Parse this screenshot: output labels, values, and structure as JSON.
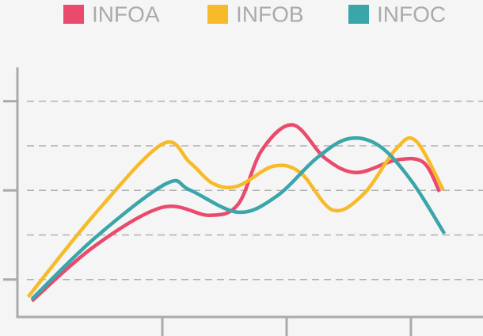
{
  "chart_data": {
    "type": "line",
    "xlim": [
      -0.166,
      3.58
    ],
    "xticks": [
      1,
      2,
      3
    ],
    "ylim": [
      0.16,
      5.76
    ],
    "yticks": [
      1,
      2,
      3,
      4,
      5
    ],
    "grid": true,
    "legend": "top",
    "series": [
      {
        "name": "INFOA",
        "color": "#ea4a6c",
        "x": [
          -0.05,
          0.46,
          1.0,
          1.38,
          1.61,
          1.8,
          2.05,
          2.31,
          2.56,
          2.88,
          3.1,
          3.23
        ],
        "values": [
          0.52,
          1.76,
          2.62,
          2.44,
          2.69,
          3.9,
          4.47,
          3.72,
          3.4,
          3.68,
          3.63,
          2.97
        ]
      },
      {
        "name": "INFOB",
        "color": "#f7bb2a",
        "x": [
          -0.08,
          0.46,
          1.0,
          1.22,
          1.41,
          1.61,
          1.89,
          2.11,
          2.37,
          2.62,
          2.88,
          3.04,
          3.26
        ],
        "values": [
          0.61,
          2.48,
          4.04,
          3.63,
          3.15,
          3.1,
          3.54,
          3.4,
          2.56,
          2.92,
          3.93,
          4.11,
          3.01
        ]
      },
      {
        "name": "INFOC",
        "color": "#3aa6aa",
        "x": [
          -0.05,
          0.46,
          1.03,
          1.22,
          1.61,
          1.92,
          2.24,
          2.5,
          2.75,
          3.01,
          3.27
        ],
        "values": [
          0.56,
          1.94,
          3.15,
          3.01,
          2.51,
          2.87,
          3.72,
          4.16,
          3.99,
          3.19,
          2.03
        ]
      }
    ]
  }
}
